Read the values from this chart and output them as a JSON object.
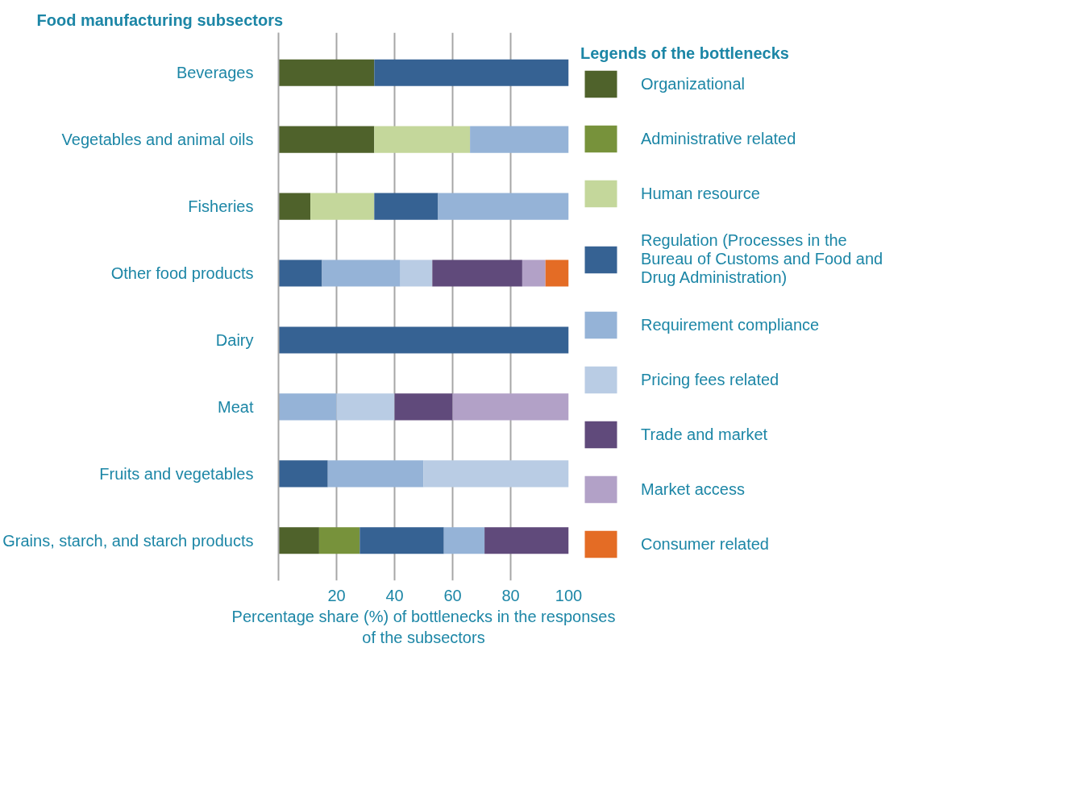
{
  "chart_data": {
    "type": "bar",
    "orientation": "horizontal",
    "stacked": true,
    "title": "Food manufacturing subsectors",
    "legend_title": "Legends of the bottlenecks",
    "xlabel": "Percentage share (%) of bottlenecks in the responses of the subsectors",
    "categories": [
      "Beverages",
      "Vegetables and animal oils",
      "Fisheries",
      "Other food products",
      "Dairy",
      "Meat",
      "Fruits and vegetables",
      "Grains, starch, and starch products"
    ],
    "series": [
      {
        "name": "Organizational",
        "color": "#4f622b",
        "values": [
          33,
          33,
          11,
          null,
          null,
          null,
          null,
          14
        ]
      },
      {
        "name": "Administrative related",
        "color": "#77923b",
        "values": [
          null,
          null,
          null,
          null,
          null,
          null,
          null,
          14
        ]
      },
      {
        "name": "Human resource",
        "color": "#c4d79b",
        "values": [
          null,
          33,
          22,
          null,
          null,
          null,
          null,
          null
        ]
      },
      {
        "name": "Regulation (Processes in the Bureau of Customs and Food and Drug Administration)",
        "color": "#366293",
        "values": [
          67,
          null,
          22,
          15,
          100,
          null,
          17,
          29
        ]
      },
      {
        "name": "Requirement compliance",
        "color": "#95b3d7",
        "values": [
          null,
          34,
          45,
          27,
          null,
          20,
          33,
          14
        ]
      },
      {
        "name": "Pricing fees related",
        "color": "#b9cce4",
        "values": [
          null,
          null,
          null,
          11,
          null,
          20,
          50,
          null
        ]
      },
      {
        "name": "Trade and market",
        "color": "#604a7b",
        "values": [
          null,
          null,
          null,
          31,
          null,
          20,
          null,
          29
        ]
      },
      {
        "name": "Market access",
        "color": "#b2a1c7",
        "values": [
          null,
          null,
          null,
          8,
          null,
          40,
          null,
          null
        ]
      },
      {
        "name": "Consumer related",
        "color": "#e46c25",
        "values": [
          null,
          null,
          null,
          8,
          null,
          null,
          null,
          null
        ]
      }
    ],
    "xlim": [
      0,
      100
    ],
    "xticks": [
      20,
      40,
      60,
      80,
      100
    ],
    "grid": "x",
    "legend": "right"
  }
}
